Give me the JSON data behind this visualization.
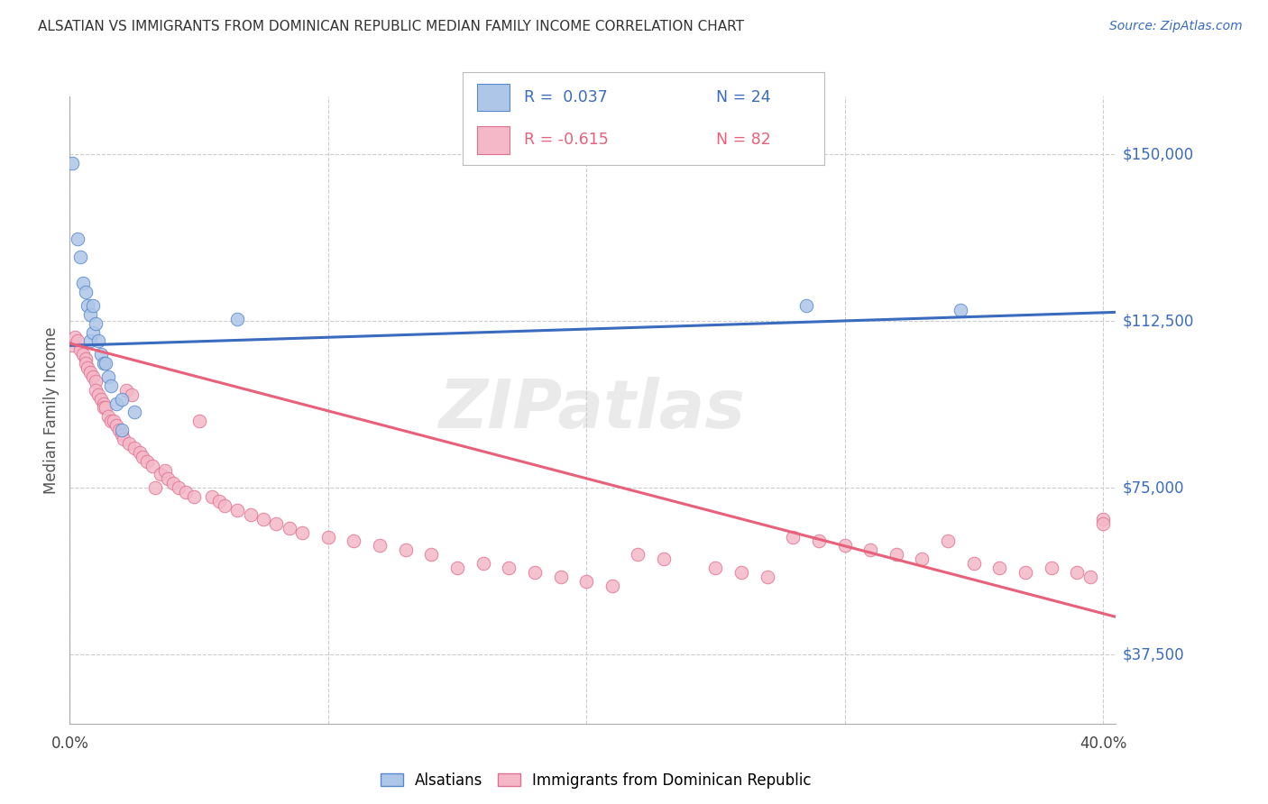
{
  "title": "ALSATIAN VS IMMIGRANTS FROM DOMINICAN REPUBLIC MEDIAN FAMILY INCOME CORRELATION CHART",
  "source": "Source: ZipAtlas.com",
  "ylabel": "Median Family Income",
  "y_ticks": [
    37500,
    75000,
    112500,
    150000
  ],
  "y_tick_labels": [
    "$37,500",
    "$75,000",
    "$112,500",
    "$150,000"
  ],
  "y_min": 22000,
  "y_max": 163000,
  "x_min": 0.0,
  "x_max": 0.405,
  "watermark": "ZIPatlas",
  "blue_color": "#aec6e8",
  "pink_color": "#f4b8c8",
  "line_blue": "#3a6bbf",
  "line_pink": "#e8607a",
  "blue_edge": "#5588cc",
  "pink_edge": "#e07090",
  "legend_r1_label": "R =  0.037",
  "legend_n1_label": "N = 24",
  "legend_r2_label": "R = -0.615",
  "legend_n2_label": "N = 82",
  "blue_line_x": [
    0.0,
    0.405
  ],
  "blue_line_y": [
    107000,
    114500
  ],
  "pink_line_x": [
    0.0,
    0.405
  ],
  "pink_line_y": [
    107500,
    46000
  ],
  "als_x": [
    0.001,
    0.003,
    0.004,
    0.005,
    0.006,
    0.007,
    0.008,
    0.008,
    0.009,
    0.009,
    0.01,
    0.011,
    0.012,
    0.013,
    0.014,
    0.015,
    0.016,
    0.018,
    0.02,
    0.02,
    0.025,
    0.065,
    0.285,
    0.345
  ],
  "als_y": [
    148000,
    131000,
    127000,
    121000,
    119000,
    116000,
    114000,
    108000,
    116000,
    110000,
    112000,
    108000,
    105000,
    103000,
    103000,
    100000,
    98000,
    94000,
    95000,
    88000,
    92000,
    113000,
    116000,
    115000
  ],
  "dom_x": [
    0.001,
    0.002,
    0.003,
    0.004,
    0.005,
    0.006,
    0.006,
    0.007,
    0.008,
    0.009,
    0.01,
    0.01,
    0.011,
    0.012,
    0.013,
    0.013,
    0.014,
    0.015,
    0.016,
    0.017,
    0.018,
    0.019,
    0.02,
    0.021,
    0.022,
    0.023,
    0.024,
    0.025,
    0.027,
    0.028,
    0.03,
    0.032,
    0.033,
    0.035,
    0.037,
    0.038,
    0.04,
    0.042,
    0.045,
    0.048,
    0.05,
    0.055,
    0.058,
    0.06,
    0.065,
    0.07,
    0.075,
    0.08,
    0.085,
    0.09,
    0.1,
    0.11,
    0.12,
    0.13,
    0.14,
    0.15,
    0.16,
    0.17,
    0.18,
    0.19,
    0.2,
    0.21,
    0.22,
    0.23,
    0.25,
    0.26,
    0.27,
    0.28,
    0.29,
    0.3,
    0.31,
    0.32,
    0.33,
    0.34,
    0.35,
    0.36,
    0.37,
    0.38,
    0.39,
    0.395,
    0.4,
    0.4
  ],
  "dom_y": [
    107000,
    109000,
    108000,
    106000,
    105000,
    104000,
    103000,
    102000,
    101000,
    100000,
    99000,
    97000,
    96000,
    95000,
    94000,
    93000,
    93000,
    91000,
    90000,
    90000,
    89000,
    88000,
    87000,
    86000,
    97000,
    85000,
    96000,
    84000,
    83000,
    82000,
    81000,
    80000,
    75000,
    78000,
    79000,
    77000,
    76000,
    75000,
    74000,
    73000,
    90000,
    73000,
    72000,
    71000,
    70000,
    69000,
    68000,
    67000,
    66000,
    65000,
    64000,
    63000,
    62000,
    61000,
    60000,
    57000,
    58000,
    57000,
    56000,
    55000,
    54000,
    53000,
    60000,
    59000,
    57000,
    56000,
    55000,
    64000,
    63000,
    62000,
    61000,
    60000,
    59000,
    63000,
    58000,
    57000,
    56000,
    57000,
    56000,
    55000,
    68000,
    67000
  ]
}
